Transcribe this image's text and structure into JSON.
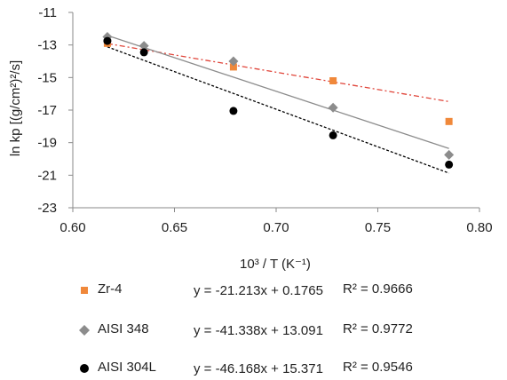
{
  "chart_data": {
    "type": "scatter",
    "xlabel": "10³ / T (K⁻¹)",
    "ylabel": "ln kp [(g/cm²)²/s]",
    "xlim": [
      0.6,
      0.8
    ],
    "ylim": [
      -23,
      -11
    ],
    "xticks": [
      "0.60",
      "0.65",
      "0.70",
      "0.75",
      "0.80"
    ],
    "yticks": [
      "-11",
      "-13",
      "-15",
      "-17",
      "-19",
      "-21",
      "-23"
    ],
    "xtick_values": [
      0.6,
      0.65,
      0.7,
      0.75,
      0.8
    ],
    "ytick_values": [
      -11,
      -13,
      -15,
      -17,
      -19,
      -21,
      -23
    ],
    "grid": "none",
    "legend_position": "bottom",
    "series": [
      {
        "name": "Zr-4",
        "marker": "square",
        "color": "#f0883a",
        "trend_style": "dash-dot",
        "trend_color": "#e0453a",
        "x": [
          0.617,
          0.679,
          0.728,
          0.785
        ],
        "y": [
          -12.9,
          -14.35,
          -15.2,
          -17.7
        ],
        "equation": "y = -21.213x + 0.1765",
        "r2": "R² = 0.9666",
        "fit": {
          "slope": -21.213,
          "intercept": 0.1765
        }
      },
      {
        "name": "AISI 348",
        "marker": "diamond",
        "color": "#8c8c8c",
        "trend_style": "solid",
        "trend_color": "#8c8c8c",
        "x": [
          0.617,
          0.635,
          0.679,
          0.728,
          0.785
        ],
        "y": [
          -12.5,
          -13.05,
          -14.0,
          -16.85,
          -19.75
        ],
        "equation": "y = -41.338x + 13.091",
        "r2": "R² = 0.9772",
        "fit": {
          "slope": -41.338,
          "intercept": 13.091
        }
      },
      {
        "name": "AISI 304L",
        "marker": "circle",
        "color": "#000000",
        "trend_style": "dotted",
        "trend_color": "#000000",
        "x": [
          0.617,
          0.635,
          0.679,
          0.728,
          0.785
        ],
        "y": [
          -12.75,
          -13.45,
          -17.05,
          -18.55,
          -20.35
        ],
        "equation": "y = -46.168x + 15.371",
        "r2": "R² = 0.9546",
        "fit": {
          "slope": -46.168,
          "intercept": 15.371
        }
      }
    ]
  }
}
